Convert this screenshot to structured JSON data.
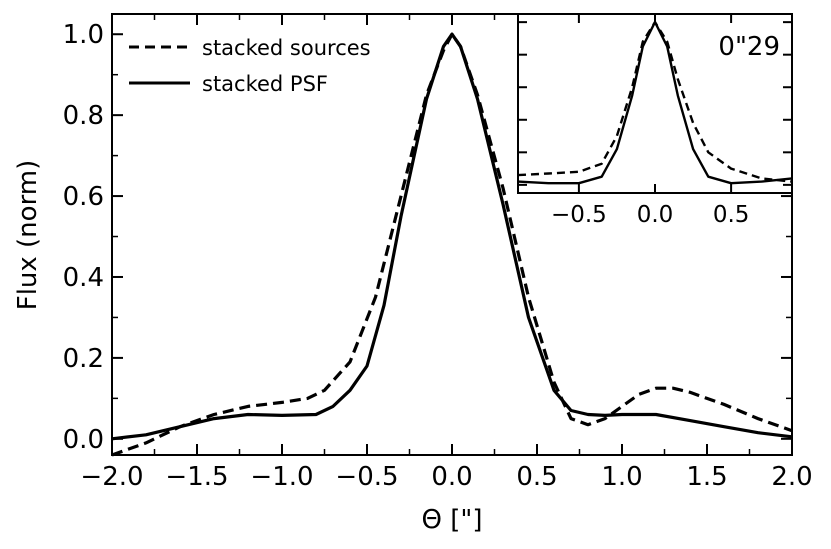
{
  "chart_data": [
    {
      "type": "line",
      "xlabel": "Θ [\"]",
      "ylabel": "Flux (norm)",
      "xlim": [
        -2.0,
        2.0
      ],
      "ylim": [
        -0.04,
        1.05
      ],
      "xticks": [
        -2.0,
        -1.5,
        -1.0,
        -0.5,
        0.0,
        0.5,
        1.0,
        1.5,
        2.0
      ],
      "xtick_labels": [
        "−2.0",
        "−1.5",
        "−1.0",
        "−0.5",
        "0.0",
        "0.5",
        "1.0",
        "1.5",
        "2.0"
      ],
      "yticks": [
        0.0,
        0.2,
        0.4,
        0.6,
        0.8,
        1.0
      ],
      "ytick_labels": [
        "0.0",
        "0.2",
        "0.4",
        "0.6",
        "0.8",
        "1.0"
      ],
      "legend": "top-left",
      "grid": false,
      "series": [
        {
          "name": "stacked sources",
          "style": "dashed",
          "color": "#000000",
          "x": [
            -2.0,
            -1.8,
            -1.6,
            -1.4,
            -1.2,
            -1.0,
            -0.85,
            -0.75,
            -0.6,
            -0.45,
            -0.3,
            -0.15,
            -0.05,
            0.0,
            0.05,
            0.15,
            0.3,
            0.45,
            0.6,
            0.7,
            0.8,
            0.9,
            1.0,
            1.1,
            1.2,
            1.3,
            1.4,
            1.5,
            1.6,
            1.8,
            2.0
          ],
          "y": [
            -0.04,
            -0.01,
            0.03,
            0.06,
            0.08,
            0.09,
            0.1,
            0.12,
            0.19,
            0.35,
            0.6,
            0.85,
            0.96,
            1.0,
            0.97,
            0.85,
            0.62,
            0.35,
            0.14,
            0.05,
            0.035,
            0.05,
            0.08,
            0.11,
            0.125,
            0.125,
            0.115,
            0.1,
            0.085,
            0.05,
            0.02
          ]
        },
        {
          "name": "stacked PSF",
          "style": "solid",
          "color": "#000000",
          "x": [
            -2.0,
            -1.8,
            -1.6,
            -1.4,
            -1.2,
            -1.0,
            -0.8,
            -0.7,
            -0.6,
            -0.5,
            -0.4,
            -0.3,
            -0.15,
            -0.05,
            0.0,
            0.05,
            0.15,
            0.3,
            0.45,
            0.6,
            0.7,
            0.8,
            0.9,
            1.0,
            1.2,
            1.4,
            1.6,
            1.8,
            2.0
          ],
          "y": [
            0.0,
            0.01,
            0.03,
            0.05,
            0.06,
            0.058,
            0.06,
            0.08,
            0.12,
            0.18,
            0.33,
            0.55,
            0.84,
            0.97,
            1.0,
            0.97,
            0.84,
            0.58,
            0.3,
            0.12,
            0.07,
            0.06,
            0.058,
            0.06,
            0.06,
            0.045,
            0.03,
            0.015,
            0.005
          ]
        }
      ]
    },
    {
      "type": "line",
      "note": "0\"29",
      "xlim": [
        -0.9,
        0.9
      ],
      "ylim": [
        -0.05,
        1.05
      ],
      "xticks": [
        -0.5,
        0.0,
        0.5
      ],
      "xtick_labels": [
        "−0.5",
        "0.0",
        "0.5"
      ],
      "yticks": [
        0.0,
        0.2,
        0.4,
        0.6,
        0.8,
        1.0
      ],
      "series": [
        {
          "name": "stacked sources",
          "style": "dashed",
          "color": "#000000",
          "x": [
            -0.9,
            -0.7,
            -0.5,
            -0.35,
            -0.25,
            -0.15,
            -0.08,
            0.0,
            0.08,
            0.15,
            0.25,
            0.35,
            0.5,
            0.7,
            0.9
          ],
          "y": [
            0.06,
            0.07,
            0.08,
            0.13,
            0.3,
            0.6,
            0.88,
            1.0,
            0.88,
            0.65,
            0.38,
            0.2,
            0.1,
            0.04,
            0.02
          ]
        },
        {
          "name": "stacked PSF",
          "style": "solid",
          "color": "#000000",
          "x": [
            -0.9,
            -0.7,
            -0.5,
            -0.35,
            -0.25,
            -0.15,
            -0.08,
            0.0,
            0.08,
            0.15,
            0.25,
            0.35,
            0.5,
            0.7,
            0.9
          ],
          "y": [
            0.02,
            0.01,
            0.01,
            0.05,
            0.22,
            0.55,
            0.85,
            1.0,
            0.85,
            0.55,
            0.22,
            0.05,
            0.01,
            0.02,
            0.04
          ]
        }
      ]
    }
  ]
}
